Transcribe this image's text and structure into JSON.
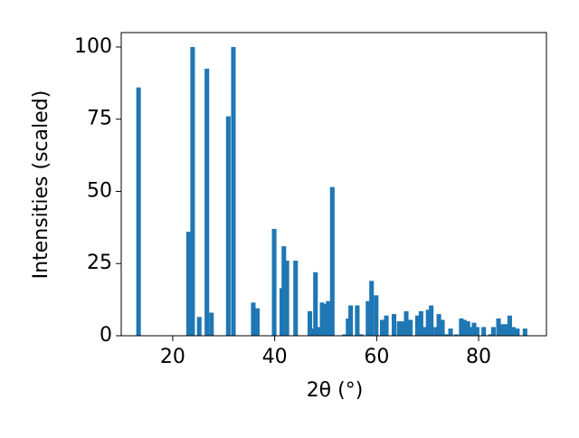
{
  "chart_data": {
    "type": "bar",
    "x_label": "2θ (°)",
    "y_label": "Intensities (scaled)",
    "color": "#1f77b4",
    "x": [
      13.3,
      23.1,
      23.9,
      25.2,
      26.7,
      27.6,
      30.9,
      31.9,
      35.8,
      36.6,
      39.9,
      41.4,
      41.8,
      42.4,
      44.1,
      46.9,
      47.4,
      48.0,
      48.7,
      49.3,
      49.9,
      50.5,
      51.3,
      53.7,
      54.4,
      54.9,
      56.2,
      57.0,
      58.3,
      59.0,
      59.9,
      61.1,
      61.9,
      63.4,
      64.4,
      65.2,
      65.8,
      66.6,
      68.0,
      68.7,
      69.4,
      70.1,
      70.7,
      71.6,
      72.2,
      72.9,
      73.7,
      74.5,
      75.6,
      76.6,
      77.2,
      77.9,
      78.6,
      79.1,
      79.7,
      81.0,
      82.3,
      82.9,
      83.9,
      84.6,
      85.5,
      86.1,
      86.8,
      87.6,
      89.1
    ],
    "values": [
      86,
      36,
      100,
      6.5,
      92.5,
      8,
      76,
      100,
      11.5,
      9.5,
      37,
      16.5,
      31,
      26,
      26,
      8.5,
      2.5,
      22,
      3,
      11.5,
      11,
      12,
      51.5,
      0.5,
      6,
      10.5,
      10.5,
      0.5,
      12,
      19,
      14,
      5.5,
      7,
      7.5,
      5,
      5,
      8.5,
      5.5,
      7,
      8.5,
      3,
      9,
      10.5,
      3,
      7.5,
      5.5,
      0.5,
      2.5,
      0.5,
      6,
      5.5,
      5,
      3,
      4.5,
      3,
      3,
      0.5,
      3,
      6,
      4,
      4,
      7,
      3,
      2.5,
      2.5
    ],
    "xlim": [
      9.9,
      93.3
    ],
    "ylim": [
      0,
      105
    ],
    "xticks": [
      20,
      40,
      60,
      80
    ],
    "yticks": [
      0,
      25,
      50,
      75,
      100
    ]
  }
}
